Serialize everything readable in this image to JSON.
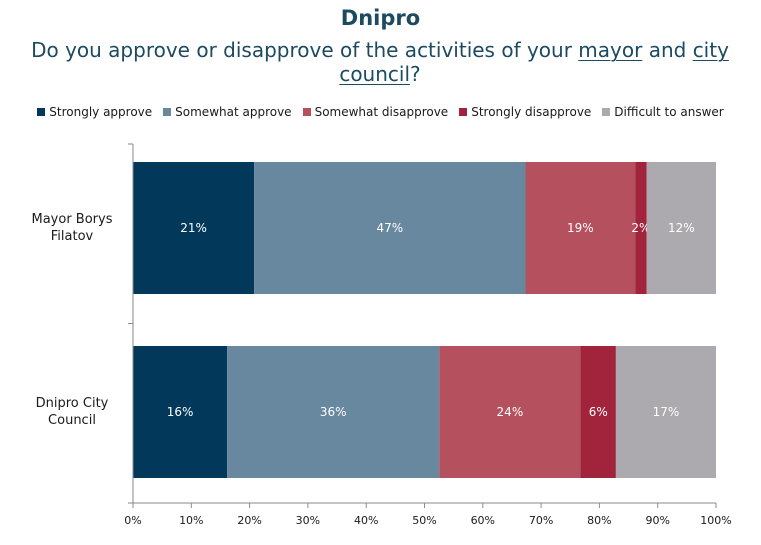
{
  "chart_data": {
    "type": "bar",
    "orientation": "horizontal",
    "stacked": true,
    "title": "Dnipro",
    "subtitle": {
      "part1": "Do you approve or disapprove of the activities of your ",
      "underline1": "mayor",
      "part2": " and ",
      "underline2": "city",
      "underline3": "council",
      "part3": "?"
    },
    "categories": [
      "Mayor Borys Filatov",
      "Dnipro City Council"
    ],
    "category_lines": [
      [
        "Mayor Borys",
        "Filatov"
      ],
      [
        "Dnipro City",
        "Council"
      ]
    ],
    "series": [
      {
        "name": "Strongly approve",
        "color": "#02385a",
        "values": [
          21,
          16
        ],
        "labels": [
          "21%",
          "16%"
        ]
      },
      {
        "name": "Somewhat approve",
        "color": "#67889e",
        "values": [
          47,
          36
        ],
        "labels": [
          "47%",
          "36%"
        ]
      },
      {
        "name": "Somewhat disapprove",
        "color": "#b5505e",
        "values": [
          19,
          24
        ],
        "labels": [
          "19%",
          "24%"
        ]
      },
      {
        "name": "Strongly disapprove",
        "color": "#a2243c",
        "values": [
          2,
          6
        ],
        "labels": [
          "2%",
          "6%"
        ]
      },
      {
        "name": "Difficult to answer",
        "color": "#acaaaf",
        "values": [
          12,
          17
        ],
        "labels": [
          "12%",
          "17%"
        ]
      }
    ],
    "xlim": [
      0,
      100
    ],
    "x_ticks": [
      "0%",
      "10%",
      "20%",
      "30%",
      "40%",
      "50%",
      "60%",
      "70%",
      "80%",
      "90%",
      "100%"
    ],
    "legend_position": "top",
    "grid": false
  }
}
